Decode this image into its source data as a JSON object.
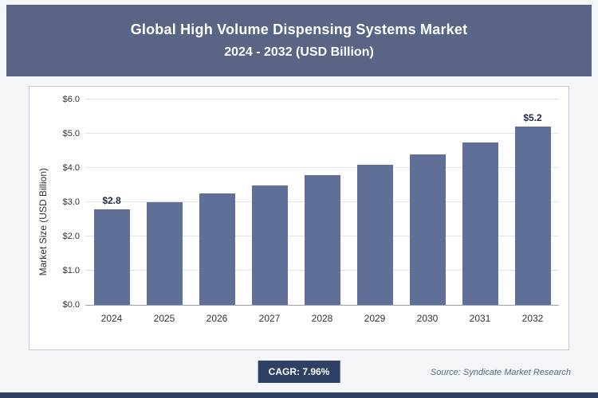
{
  "header": {
    "title_line1": "Global High Volume Dispensing Systems Market",
    "title_line2": "2024 - 2032 (USD Billion)"
  },
  "chart_data": {
    "type": "bar",
    "title": "Global High Volume Dispensing Systems Market 2024 - 2032 (USD Billion)",
    "categories": [
      "2024",
      "2025",
      "2026",
      "2027",
      "2028",
      "2029",
      "2030",
      "2031",
      "2032"
    ],
    "values": [
      2.8,
      3.0,
      3.25,
      3.5,
      3.8,
      4.1,
      4.4,
      4.75,
      5.2
    ],
    "data_labels": {
      "0": "$2.8",
      "8": "$5.2"
    },
    "xlabel": "",
    "ylabel": "Market Size (USD Billion)",
    "ylim": [
      0,
      6
    ],
    "yticks": [
      0,
      1,
      2,
      3,
      4,
      5,
      6
    ],
    "ytick_labels": [
      "$0.0",
      "$1.0",
      "$2.0",
      "$3.0",
      "$4.0",
      "$5.0",
      "$6.0"
    ],
    "grid": true,
    "legend": false,
    "bar_color": "#5f6f98"
  },
  "footer": {
    "cagr_label": "CAGR: 7.96%",
    "source": "Source: Syndicate Market Research"
  },
  "colors": {
    "header_bg": "#5a6485",
    "bar": "#5f6f98",
    "badge_bg": "#2e4164",
    "page_bg": "#f4f5f8",
    "panel_bg": "#ffffff"
  }
}
